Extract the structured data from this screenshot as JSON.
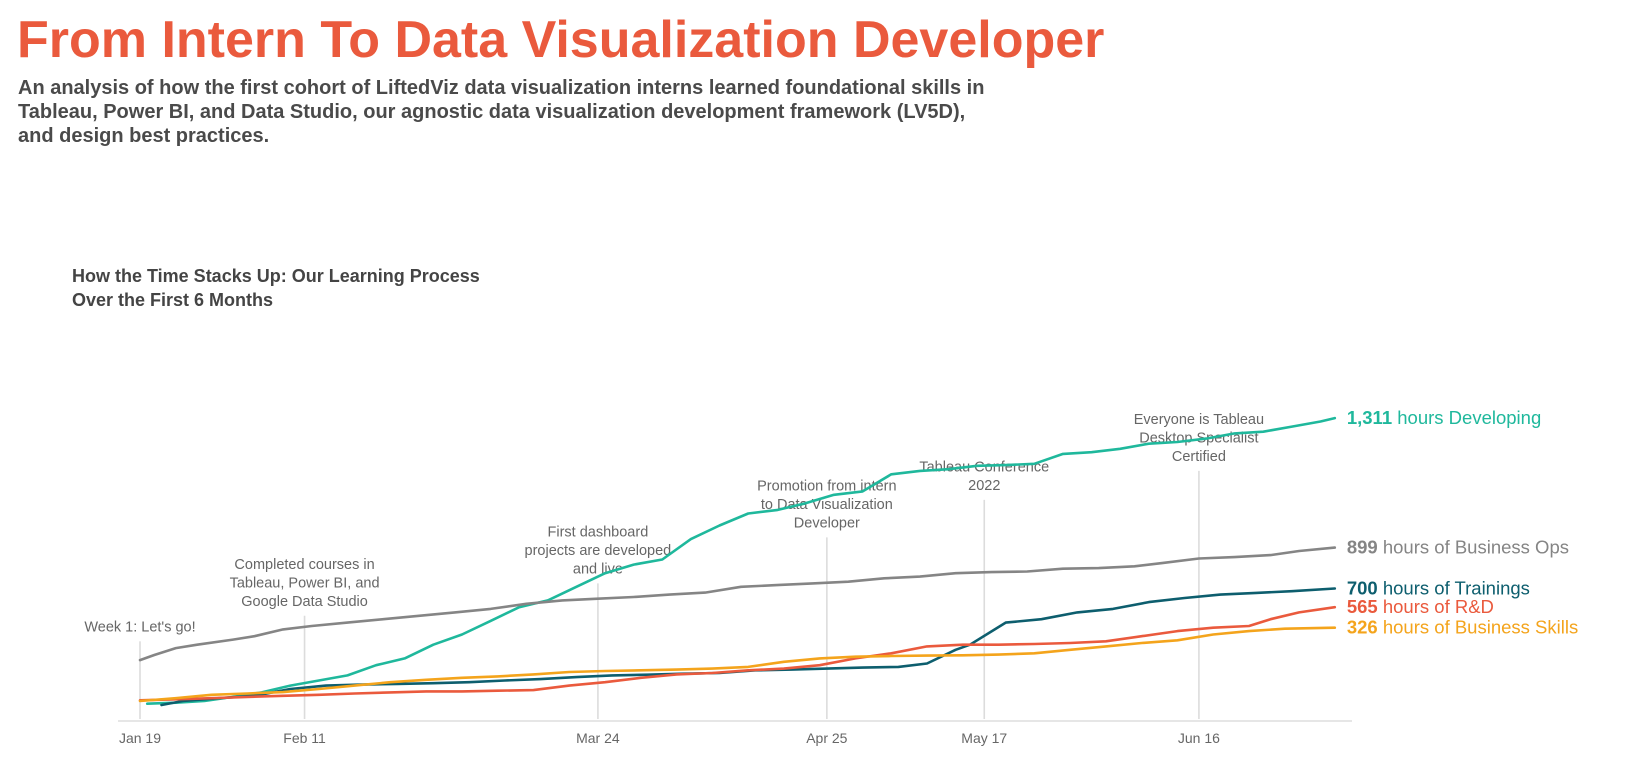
{
  "header": {
    "title": "From Intern To Data Visualization Developer",
    "subtitle": "An analysis of how the first cohort of LiftedViz data visualization interns learned foundational skills in Tableau, Power BI, and Data Studio, our agnostic data visualization development framework (LV5D), and design best practices."
  },
  "chart_data": {
    "type": "line",
    "title_lines": [
      "How the Time Stacks Up: Our Learning Process",
      "Over the First 6 Months"
    ],
    "x_axis": {
      "type": "date",
      "range": [
        "2022-01-19",
        "2022-07-06"
      ],
      "ticks": [
        {
          "date": "2022-01-19",
          "label": "Jan 19"
        },
        {
          "date": "2022-02-11",
          "label": "Feb 11"
        },
        {
          "date": "2022-03-24",
          "label": "Mar 24"
        },
        {
          "date": "2022-04-25",
          "label": "Apr 25"
        },
        {
          "date": "2022-05-17",
          "label": "May 17"
        },
        {
          "date": "2022-06-16",
          "label": "Jun 16"
        }
      ]
    },
    "y_axis": {
      "range": [
        0,
        1520
      ],
      "ticks_shown": false,
      "unit": "hours"
    },
    "grid": false,
    "milestones": [
      {
        "date": "2022-01-19",
        "lines": [
          "Week 1: Let's go!"
        ],
        "top_value": 225
      },
      {
        "date": "2022-02-11",
        "lines": [
          "Completed courses in",
          "Tableau, Power BI, and",
          "Google Data Studio"
        ],
        "top_value": 300
      },
      {
        "date": "2022-03-24",
        "lines": [
          "First dashboard",
          "projects are developed",
          "and live"
        ],
        "top_value": 395
      },
      {
        "date": "2022-04-25",
        "lines": [
          "Promotion from intern",
          "to Data Visualization",
          "Developer"
        ],
        "top_value": 530
      },
      {
        "date": "2022-05-17",
        "lines": [
          "Tableau Conference",
          "2022"
        ],
        "top_value": 640
      },
      {
        "date": "2022-06-16",
        "lines": [
          "Everyone is Tableau",
          "Desktop Specialist",
          "Certified"
        ],
        "top_value": 725
      }
    ],
    "series": [
      {
        "name": "hours Developing",
        "total": "1,311",
        "color": "#1fb89c",
        "points": [
          [
            "2022-01-20",
            42
          ],
          [
            "2022-01-24",
            45
          ],
          [
            "2022-01-28",
            50
          ],
          [
            "2022-02-01",
            62
          ],
          [
            "2022-02-05",
            75
          ],
          [
            "2022-02-09",
            95
          ],
          [
            "2022-02-13",
            110
          ],
          [
            "2022-02-17",
            125
          ],
          [
            "2022-02-21",
            155
          ],
          [
            "2022-02-25",
            175
          ],
          [
            "2022-03-01",
            215
          ],
          [
            "2022-03-05",
            245
          ],
          [
            "2022-03-09",
            285
          ],
          [
            "2022-03-13",
            325
          ],
          [
            "2022-03-17",
            345
          ],
          [
            "2022-03-21",
            385
          ],
          [
            "2022-03-25",
            425
          ],
          [
            "2022-03-29",
            450
          ],
          [
            "2022-04-02",
            465
          ],
          [
            "2022-04-06",
            525
          ],
          [
            "2022-04-10",
            565
          ],
          [
            "2022-04-14",
            600
          ],
          [
            "2022-04-18",
            610
          ],
          [
            "2022-04-22",
            630
          ],
          [
            "2022-04-26",
            655
          ],
          [
            "2022-04-30",
            665
          ],
          [
            "2022-05-04",
            715
          ],
          [
            "2022-05-08",
            725
          ],
          [
            "2022-05-12",
            730
          ],
          [
            "2022-05-16",
            740
          ],
          [
            "2022-05-20",
            742
          ],
          [
            "2022-05-24",
            746
          ],
          [
            "2022-05-28",
            775
          ],
          [
            "2022-06-01",
            780
          ],
          [
            "2022-06-05",
            790
          ],
          [
            "2022-06-09",
            805
          ],
          [
            "2022-06-13",
            810
          ],
          [
            "2022-06-17",
            820
          ],
          [
            "2022-06-21",
            835
          ],
          [
            "2022-06-25",
            840
          ],
          [
            "2022-06-29",
            855
          ],
          [
            "2022-07-03",
            870
          ],
          [
            "2022-07-05",
            880
          ]
        ]
      },
      {
        "name": "hours of Business Ops",
        "total": "899",
        "color": "#858585",
        "points": [
          [
            "2022-01-19",
            170
          ],
          [
            "2022-01-21",
            185
          ],
          [
            "2022-01-24",
            205
          ],
          [
            "2022-01-27",
            215
          ],
          [
            "2022-02-01",
            230
          ],
          [
            "2022-02-04",
            240
          ],
          [
            "2022-02-08",
            260
          ],
          [
            "2022-02-12",
            270
          ],
          [
            "2022-02-17",
            280
          ],
          [
            "2022-02-22",
            290
          ],
          [
            "2022-02-27",
            300
          ],
          [
            "2022-03-04",
            310
          ],
          [
            "2022-03-09",
            320
          ],
          [
            "2022-03-14",
            335
          ],
          [
            "2022-03-19",
            345
          ],
          [
            "2022-03-24",
            350
          ],
          [
            "2022-03-29",
            355
          ],
          [
            "2022-04-03",
            362
          ],
          [
            "2022-04-08",
            368
          ],
          [
            "2022-04-13",
            385
          ],
          [
            "2022-04-18",
            390
          ],
          [
            "2022-04-23",
            395
          ],
          [
            "2022-04-28",
            400
          ],
          [
            "2022-05-03",
            410
          ],
          [
            "2022-05-08",
            415
          ],
          [
            "2022-05-13",
            425
          ],
          [
            "2022-05-18",
            428
          ],
          [
            "2022-05-23",
            430
          ],
          [
            "2022-05-28",
            438
          ],
          [
            "2022-06-02",
            440
          ],
          [
            "2022-06-07",
            445
          ],
          [
            "2022-06-11",
            455
          ],
          [
            "2022-06-16",
            468
          ],
          [
            "2022-06-21",
            472
          ],
          [
            "2022-06-26",
            478
          ],
          [
            "2022-06-30",
            490
          ],
          [
            "2022-07-05",
            500
          ]
        ]
      },
      {
        "name": "hours of Trainings",
        "total": "700",
        "color": "#0d5e6e",
        "points": [
          [
            "2022-01-22",
            38
          ],
          [
            "2022-01-25",
            50
          ],
          [
            "2022-01-30",
            58
          ],
          [
            "2022-02-04",
            65
          ],
          [
            "2022-02-09",
            85
          ],
          [
            "2022-02-14",
            95
          ],
          [
            "2022-02-19",
            98
          ],
          [
            "2022-02-24",
            100
          ],
          [
            "2022-03-01",
            102
          ],
          [
            "2022-03-06",
            105
          ],
          [
            "2022-03-11",
            110
          ],
          [
            "2022-03-16",
            114
          ],
          [
            "2022-03-21",
            120
          ],
          [
            "2022-03-26",
            125
          ],
          [
            "2022-03-31",
            127
          ],
          [
            "2022-04-05",
            130
          ],
          [
            "2022-04-10",
            132
          ],
          [
            "2022-04-15",
            140
          ],
          [
            "2022-04-20",
            142
          ],
          [
            "2022-04-25",
            145
          ],
          [
            "2022-04-30",
            148
          ],
          [
            "2022-05-05",
            150
          ],
          [
            "2022-05-09",
            160
          ],
          [
            "2022-05-13",
            200
          ],
          [
            "2022-05-15",
            215
          ],
          [
            "2022-05-20",
            280
          ],
          [
            "2022-05-25",
            290
          ],
          [
            "2022-05-30",
            310
          ],
          [
            "2022-06-04",
            320
          ],
          [
            "2022-06-09",
            340
          ],
          [
            "2022-06-14",
            352
          ],
          [
            "2022-06-19",
            362
          ],
          [
            "2022-06-24",
            367
          ],
          [
            "2022-06-29",
            372
          ],
          [
            "2022-07-05",
            380
          ]
        ]
      },
      {
        "name": "hours of R&D",
        "total": "565",
        "color": "#ea5a3d",
        "points": [
          [
            "2022-01-19",
            52
          ],
          [
            "2022-01-24",
            55
          ],
          [
            "2022-01-29",
            58
          ],
          [
            "2022-02-03",
            62
          ],
          [
            "2022-02-08",
            65
          ],
          [
            "2022-02-13",
            68
          ],
          [
            "2022-02-18",
            72
          ],
          [
            "2022-02-23",
            75
          ],
          [
            "2022-02-28",
            78
          ],
          [
            "2022-03-05",
            78
          ],
          [
            "2022-03-10",
            80
          ],
          [
            "2022-03-15",
            82
          ],
          [
            "2022-03-20",
            95
          ],
          [
            "2022-03-25",
            105
          ],
          [
            "2022-03-30",
            118
          ],
          [
            "2022-04-04",
            128
          ],
          [
            "2022-04-09",
            132
          ],
          [
            "2022-04-14",
            140
          ],
          [
            "2022-04-19",
            145
          ],
          [
            "2022-04-24",
            155
          ],
          [
            "2022-04-29",
            175
          ],
          [
            "2022-05-04",
            190
          ],
          [
            "2022-05-09",
            210
          ],
          [
            "2022-05-14",
            215
          ],
          [
            "2022-05-19",
            215
          ],
          [
            "2022-05-24",
            217
          ],
          [
            "2022-05-29",
            220
          ],
          [
            "2022-06-03",
            225
          ],
          [
            "2022-06-08",
            240
          ],
          [
            "2022-06-13",
            255
          ],
          [
            "2022-06-18",
            265
          ],
          [
            "2022-06-23",
            270
          ],
          [
            "2022-06-26",
            290
          ],
          [
            "2022-06-30",
            310
          ],
          [
            "2022-07-05",
            325
          ]
        ]
      },
      {
        "name": "hours of Business Skills",
        "total": "326",
        "color": "#f4a41c",
        "points": [
          [
            "2022-01-19",
            50
          ],
          [
            "2022-01-24",
            58
          ],
          [
            "2022-01-29",
            68
          ],
          [
            "2022-02-03",
            72
          ],
          [
            "2022-02-08",
            76
          ],
          [
            "2022-02-13",
            85
          ],
          [
            "2022-02-18",
            95
          ],
          [
            "2022-02-23",
            105
          ],
          [
            "2022-02-28",
            112
          ],
          [
            "2022-03-05",
            118
          ],
          [
            "2022-03-10",
            122
          ],
          [
            "2022-03-15",
            128
          ],
          [
            "2022-03-20",
            135
          ],
          [
            "2022-03-25",
            138
          ],
          [
            "2022-03-30",
            140
          ],
          [
            "2022-04-04",
            142
          ],
          [
            "2022-04-09",
            145
          ],
          [
            "2022-04-14",
            150
          ],
          [
            "2022-04-19",
            165
          ],
          [
            "2022-04-24",
            175
          ],
          [
            "2022-04-29",
            180
          ],
          [
            "2022-05-04",
            182
          ],
          [
            "2022-05-09",
            183
          ],
          [
            "2022-05-14",
            184
          ],
          [
            "2022-05-19",
            186
          ],
          [
            "2022-05-24",
            190
          ],
          [
            "2022-05-29",
            200
          ],
          [
            "2022-06-03",
            210
          ],
          [
            "2022-06-08",
            220
          ],
          [
            "2022-06-13",
            228
          ],
          [
            "2022-06-18",
            245
          ],
          [
            "2022-06-23",
            255
          ],
          [
            "2022-06-28",
            262
          ],
          [
            "2022-07-05",
            265
          ]
        ]
      }
    ]
  }
}
